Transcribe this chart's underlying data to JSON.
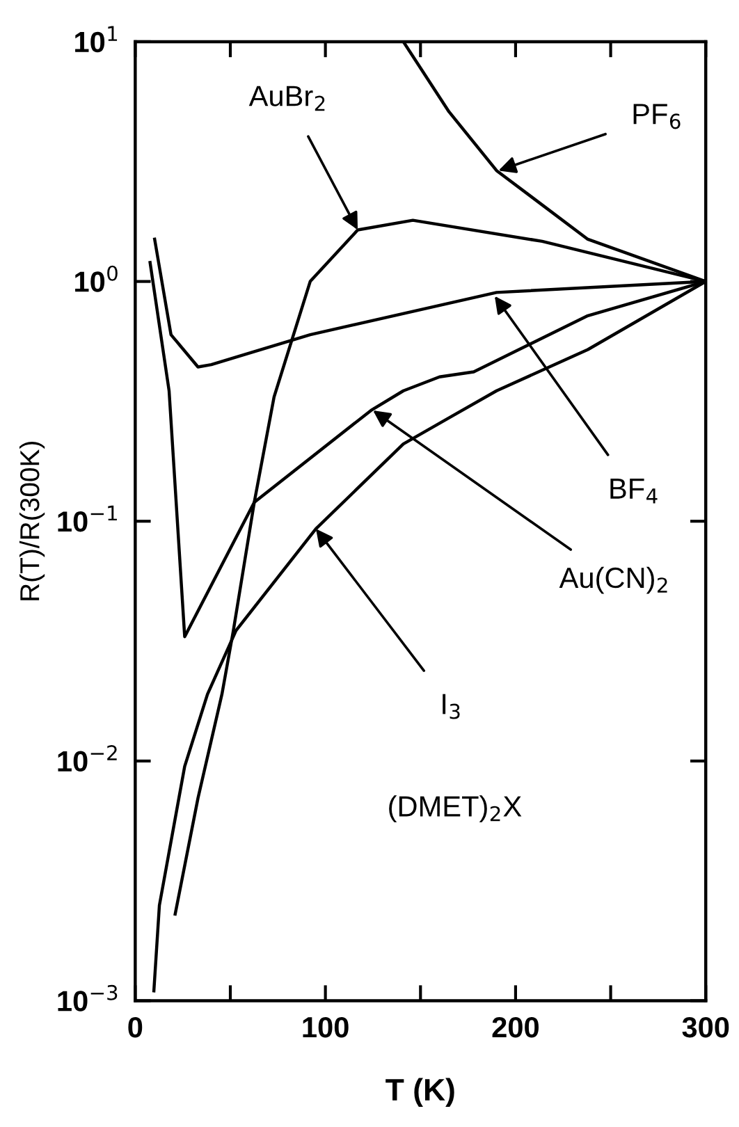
{
  "chart_data": {
    "type": "line",
    "xlabel": "T (K)",
    "ylabel": "R(T)/R(300K)",
    "log": "y",
    "grid": false,
    "legend": false,
    "marker": "none",
    "line_style": "solid",
    "xlim": [
      0,
      300
    ],
    "xticks": [
      0,
      {
        "value": 50,
        "label": null
      },
      100,
      {
        "value": 150,
        "label": null
      },
      200,
      {
        "value": 250,
        "label": null
      },
      300
    ],
    "ylim": [
      0.001,
      10
    ],
    "yticks": [
      {
        "value": 0.001,
        "label": "10$^{−3}$"
      },
      {
        "value": 0.01,
        "label": "10$^{−2}$"
      },
      {
        "value": 0.1,
        "label": "10$^{−1}$"
      },
      {
        "value": 1,
        "label": "10$^{0}$"
      },
      {
        "value": 10,
        "label": "10$^{1}$"
      }
    ],
    "series": [
      {
        "color": "#000000",
        "x": [
          141,
          165,
          190,
          238,
          300
        ],
        "values": [
          10,
          5.1,
          2.9,
          1.5,
          1
        ]
      },
      {
        "color": "#000000",
        "x": [
          21,
          33,
          45.6,
          51.6,
          62.6,
          73,
          92,
          117,
          146,
          214,
          300
        ],
        "values": [
          0.0023,
          0.007,
          0.019,
          0.035,
          0.12,
          0.33,
          1.0,
          1.64,
          1.8,
          1.47,
          1
        ]
      },
      {
        "color": "#000000",
        "x": [
          10.2,
          18.8,
          33,
          40,
          92,
          190,
          300
        ],
        "values": [
          1.5,
          0.6,
          0.44,
          0.45,
          0.6,
          0.9,
          1
        ]
      },
      {
        "color": "#000000",
        "x": [
          7.8,
          17.8,
          26,
          62.6,
          124,
          141,
          160,
          178,
          238,
          300
        ],
        "values": [
          1.2,
          0.35,
          0.033,
          0.12,
          0.29,
          0.35,
          0.4,
          0.42,
          0.72,
          1
        ]
      },
      {
        "color": "#000000",
        "x": [
          9.8,
          12.7,
          26,
          38,
          53,
          95,
          141,
          165,
          190,
          238,
          300
        ],
        "values": [
          0.0011,
          0.0025,
          0.0095,
          0.019,
          0.035,
          0.093,
          0.21,
          0.27,
          0.35,
          0.52,
          1
        ]
      }
    ],
    "annotations": [
      {
        "text": "PF$_{6}$",
        "x": 191,
        "y": 2.9
      },
      {
        "text": "AuBr$_{2}$",
        "x": 117,
        "y": 1.64
      },
      {
        "text": "BF$_{4}$",
        "x": 189,
        "y": 0.87
      },
      {
        "text": "Au(CN)$_{2}$",
        "x": 125,
        "y": 0.29
      },
      {
        "text": "I$_{3}$",
        "x": 95,
        "y": 0.093
      },
      "(DMET)$_{2}$X"
    ]
  }
}
